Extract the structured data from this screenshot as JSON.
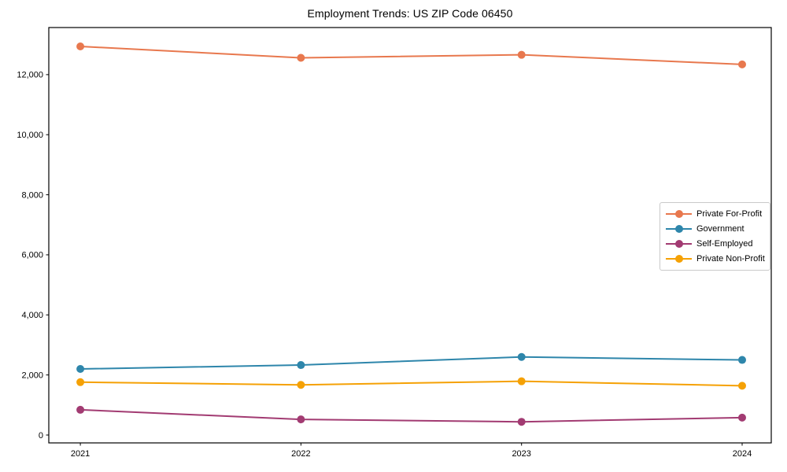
{
  "chart_data": {
    "type": "line",
    "title": "Employment Trends: US ZIP Code 06450",
    "x": [
      2021,
      2022,
      2023,
      2024
    ],
    "xtick_labels": [
      "2021",
      "2022",
      "2023",
      "2024"
    ],
    "yticks": [
      0,
      2000,
      4000,
      6000,
      8000,
      10000,
      12000
    ],
    "ytick_labels": [
      "0",
      "2,000",
      "4,000",
      "6,000",
      "8,000",
      "10,000",
      "12,000"
    ],
    "series": [
      {
        "name": "Private For-Profit",
        "color": "#E8784E",
        "values": [
          12940,
          12560,
          12660,
          12340
        ]
      },
      {
        "name": "Government",
        "color": "#2E86AB",
        "values": [
          2200,
          2330,
          2600,
          2500
        ]
      },
      {
        "name": "Self-Employed",
        "color": "#A23B72",
        "values": [
          840,
          520,
          440,
          580
        ]
      },
      {
        "name": "Private Non-Profit",
        "color": "#F5A105",
        "values": [
          1760,
          1670,
          1790,
          1640
        ]
      }
    ],
    "xlim": [
      2020.857,
      2024.132
    ],
    "ylim": [
      -262,
      13568
    ],
    "xlabel": "",
    "ylabel": "",
    "grid": false,
    "legend_position": "center right",
    "marker": "circle",
    "axis_color": "#000000",
    "background_color": "#ffffff"
  }
}
